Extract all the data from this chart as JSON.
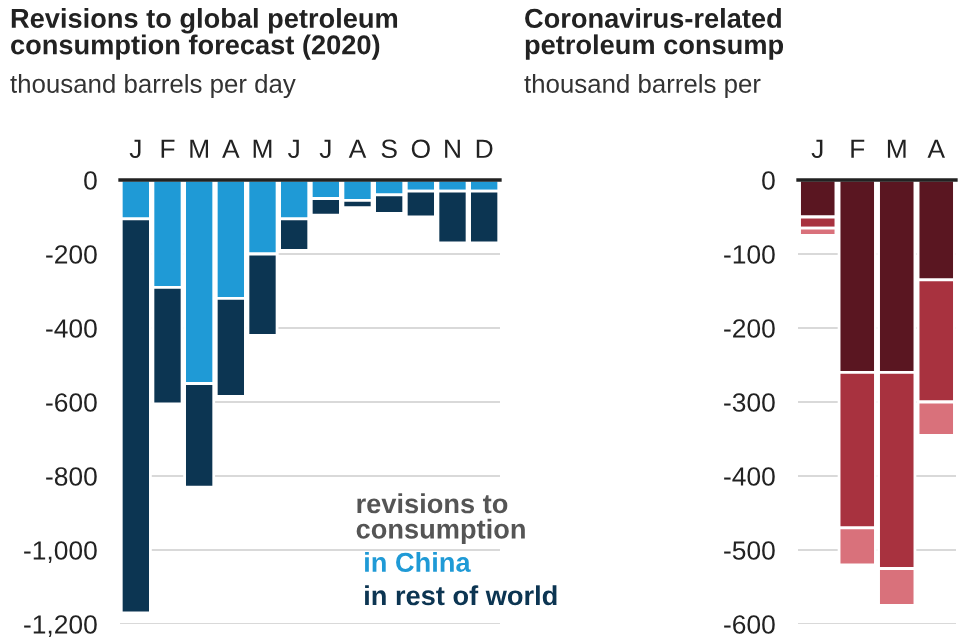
{
  "chart_data": [
    {
      "type": "bar",
      "stacked": true,
      "title": "Revisions to global petroleum\nconsumption forecast (2020)",
      "subtitle": "thousand barrels per day",
      "categories": [
        "J",
        "F",
        "M",
        "A",
        "M",
        "J",
        "J",
        "A",
        "S",
        "O",
        "N",
        "D"
      ],
      "series": [
        {
          "name": "in China",
          "color": "#1f9ad6",
          "values": [
            -105,
            -290,
            -550,
            -320,
            -200,
            -105,
            -50,
            -55,
            -40,
            -30,
            -30,
            -30
          ]
        },
        {
          "name": "in rest of world",
          "color": "#0c3552",
          "values": [
            -1065,
            -315,
            -280,
            -265,
            -220,
            -85,
            -45,
            -20,
            -50,
            -70,
            -140,
            -140
          ]
        }
      ],
      "legend_title": "revisions to\nconsumption",
      "legend": "bottom right",
      "ylim": [
        -1200,
        0
      ],
      "yticks": [
        0,
        -200,
        -400,
        -600,
        -800,
        {
          "value": -1000,
          "label": "-1,000"
        },
        {
          "value": -1200,
          "label": "-1,200"
        }
      ],
      "grid": "y"
    },
    {
      "type": "bar",
      "stacked": true,
      "title": "Coronavirus-related\npetroleum consump",
      "subtitle": "thousand barrels per",
      "categories": [
        "J",
        "F",
        "M",
        "A"
      ],
      "series": [
        {
          "color": "#5a1621",
          "values": [
            -50,
            -260,
            -260,
            -135
          ]
        },
        {
          "color": "#a8323f",
          "values": [
            -15,
            -210,
            -265,
            -165
          ]
        },
        {
          "color": "#d9717b",
          "values": [
            -10,
            -50,
            -50,
            -45
          ]
        }
      ],
      "ylim": [
        -600,
        0
      ],
      "yticks": [
        0,
        -100,
        -200,
        -300,
        -400,
        -500,
        -600
      ],
      "grid": "y"
    }
  ]
}
